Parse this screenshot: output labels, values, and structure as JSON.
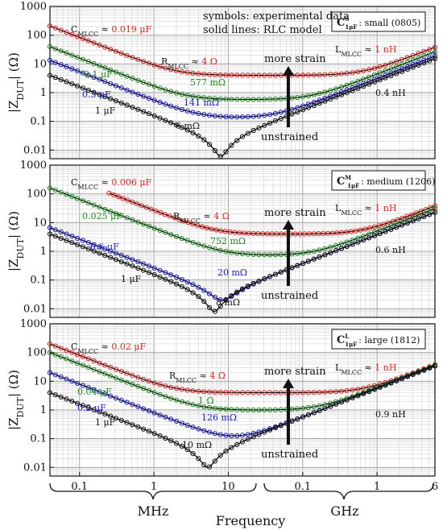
{
  "legend": {
    "line1": "symbols: experimental data",
    "line2": "solid lines: RLC model"
  },
  "y_label": "|Z",
  "y_label_sub": "DUT",
  "y_label_unit": "| (Ω)",
  "strain_labels": {
    "more": "more strain",
    "less": "unstrained"
  },
  "bottom": {
    "mhz": "MHz",
    "frequency": "Frequency",
    "ghz": "GHz"
  },
  "x_ticks": [
    "0.1",
    "1",
    "10",
    "0.1",
    "1",
    "6"
  ],
  "y_ticks": [
    "1000",
    "100",
    "10",
    "1",
    "0.1",
    "0.01"
  ],
  "colors": {
    "red": "#e8201b",
    "green": "#1e8c1e",
    "blue": "#1a1ad6",
    "black": "#111111"
  },
  "chart_data": [
    {
      "type": "line",
      "xscale": "log",
      "yscale": "log",
      "xlim_hz": [
        40000,
        6000000000
      ],
      "ylim": [
        0.005,
        1000
      ],
      "x_unit": "Hz",
      "y_unit": "Ω",
      "badge": "C",
      "badge_sub": "1μF",
      "badge_sup": "S",
      "badge_text": ": small (0805)",
      "annotations": [
        {
          "text": "C",
          "sub": "MLCC",
          "rest": " ≈ ",
          "value": "0.019 μF",
          "color": "red"
        },
        {
          "text": "R",
          "sub": "MLCC",
          "rest": " ≈ ",
          "value": "4 Ω",
          "color": "red"
        },
        {
          "text": "L",
          "sub": "MLCC",
          "rest": " ≈ ",
          "value": "1 nH",
          "color": "red"
        },
        {
          "text": "0.1 μF",
          "color": "green"
        },
        {
          "text": "577 mΩ",
          "color": "green"
        },
        {
          "text": "0.3 μF",
          "color": "blue"
        },
        {
          "text": "141 mΩ",
          "color": "blue"
        },
        {
          "text": "1 μF",
          "color": "black"
        },
        {
          "text": "6 mΩ",
          "color": "black"
        },
        {
          "text": "0.4 nH",
          "color": "black"
        }
      ],
      "series": [
        {
          "color": "red",
          "C_uF": 0.019,
          "R_ohm": 4,
          "L_nH": 1,
          "x_start_hz": 40000
        },
        {
          "color": "green",
          "C_uF": 0.1,
          "R_ohm": 0.577,
          "L_nH": 0.7,
          "x_start_hz": 40000
        },
        {
          "color": "blue",
          "C_uF": 0.3,
          "R_ohm": 0.141,
          "L_nH": 0.5,
          "x_start_hz": 40000
        },
        {
          "color": "black",
          "C_uF": 1,
          "R_ohm": 0.006,
          "L_nH": 0.4,
          "x_start_hz": 40000
        }
      ]
    },
    {
      "type": "line",
      "xscale": "log",
      "yscale": "log",
      "xlim_hz": [
        40000,
        6000000000
      ],
      "ylim": [
        0.005,
        1000
      ],
      "x_unit": "Hz",
      "y_unit": "Ω",
      "badge": "C",
      "badge_sub": "1μF",
      "badge_sup": "M",
      "badge_text": ": medium (1206)",
      "annotations": [
        {
          "text": "C",
          "sub": "MLCC",
          "rest": " ≈ ",
          "value": "0.006 μF",
          "color": "red"
        },
        {
          "text": "R",
          "sub": "MLCC",
          "rest": " ≈ ",
          "value": "4 Ω",
          "color": "red"
        },
        {
          "text": "L",
          "sub": "MLCC",
          "rest": " ≈ ",
          "value": "1 nH",
          "color": "red"
        },
        {
          "text": "0.025 μF",
          "color": "green"
        },
        {
          "text": "752 mΩ",
          "color": "green"
        },
        {
          "text": "0.6 μF",
          "color": "blue"
        },
        {
          "text": "20 mΩ",
          "color": "blue"
        },
        {
          "text": "1 μF",
          "color": "black"
        },
        {
          "text": "8 mΩ",
          "color": "black"
        },
        {
          "text": "0.6 nH",
          "color": "black"
        }
      ],
      "series": [
        {
          "color": "red",
          "C_uF": 0.006,
          "R_ohm": 4,
          "L_nH": 1,
          "x_start_hz": 250000
        },
        {
          "color": "green",
          "C_uF": 0.025,
          "R_ohm": 0.752,
          "L_nH": 0.8,
          "x_start_hz": 40000
        },
        {
          "color": "blue",
          "C_uF": 0.6,
          "R_ohm": 0.02,
          "L_nH": 0.6,
          "x_start_hz": 40000
        },
        {
          "color": "black",
          "C_uF": 1,
          "R_ohm": 0.008,
          "L_nH": 0.6,
          "x_start_hz": 40000
        }
      ]
    },
    {
      "type": "line",
      "xscale": "log",
      "yscale": "log",
      "xlim_hz": [
        40000,
        6000000000
      ],
      "ylim": [
        0.005,
        1000
      ],
      "x_unit": "Hz",
      "y_unit": "Ω",
      "badge": "C",
      "badge_sub": "1μF",
      "badge_sup": "L",
      "badge_text": ": large (1812)",
      "annotations": [
        {
          "text": "C",
          "sub": "MLCC",
          "rest": " ≈ ",
          "value": "0.02 μF",
          "color": "red"
        },
        {
          "text": "R",
          "sub": "MLCC",
          "rest": " ≈ ",
          "value": "4 Ω",
          "color": "red"
        },
        {
          "text": "L",
          "sub": "MLCC",
          "rest": " ≈ ",
          "value": "1 nH",
          "color": "red"
        },
        {
          "text": "0.04 μF",
          "color": "green"
        },
        {
          "text": "1 Ω",
          "color": "green"
        },
        {
          "text": "0.2 μF",
          "color": "blue"
        },
        {
          "text": "126 mΩ",
          "color": "blue"
        },
        {
          "text": "1 μF",
          "color": "black"
        },
        {
          "text": "10 mΩ",
          "color": "black"
        },
        {
          "text": "0.9 nH",
          "color": "black"
        }
      ],
      "series": [
        {
          "color": "red",
          "C_uF": 0.02,
          "R_ohm": 4,
          "L_nH": 1,
          "x_start_hz": 40000
        },
        {
          "color": "green",
          "C_uF": 0.04,
          "R_ohm": 1,
          "L_nH": 0.95,
          "x_start_hz": 40000
        },
        {
          "color": "blue",
          "C_uF": 0.2,
          "R_ohm": 0.126,
          "L_nH": 0.9,
          "x_start_hz": 40000
        },
        {
          "color": "black",
          "C_uF": 1,
          "R_ohm": 0.01,
          "L_nH": 0.9,
          "x_start_hz": 40000
        }
      ]
    }
  ]
}
